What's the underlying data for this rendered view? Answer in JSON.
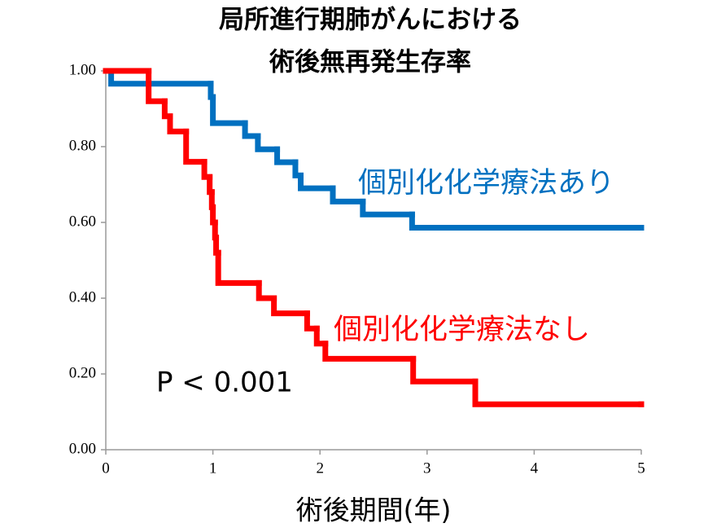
{
  "chart_data": {
    "type": "step",
    "title": [
      "局所進行期肺がんにおける",
      "術後無再発生存率"
    ],
    "xlabel": "術後期間(年)",
    "annotation": "P < 0.001",
    "xlim": [
      0,
      5
    ],
    "xticks": [
      0,
      1,
      2,
      3,
      4,
      5
    ],
    "ylim": [
      0,
      1
    ],
    "yticks": [
      {
        "value": 0,
        "label": "0.00"
      },
      {
        "value": 0.2,
        "label": "0.20"
      },
      {
        "value": 0.4,
        "label": "0.40"
      },
      {
        "value": 0.6,
        "label": "0.60"
      },
      {
        "value": 0.8,
        "label": "0.80"
      },
      {
        "value": 1,
        "label": "1.00"
      }
    ],
    "series": [
      {
        "name": "個別化化学療法あり",
        "color": "#0070c0",
        "x": [
          0,
          0.05,
          0.98,
          1.0,
          1.3,
          1.42,
          1.6,
          1.77,
          1.82,
          2.12,
          2.4,
          2.86,
          5
        ],
        "values": [
          1.0,
          0.966,
          0.931,
          0.862,
          0.828,
          0.793,
          0.759,
          0.724,
          0.69,
          0.655,
          0.621,
          0.586,
          0.586
        ]
      },
      {
        "name": "個別化化学療法なし",
        "color": "#ff0000",
        "x": [
          0,
          0.4,
          0.55,
          0.6,
          0.75,
          0.92,
          0.97,
          0.99,
          1.0,
          1.02,
          1.03,
          1.05,
          1.43,
          1.57,
          1.88,
          1.97,
          2.05,
          2.87,
          3.45,
          5
        ],
        "values": [
          1.0,
          0.92,
          0.88,
          0.84,
          0.76,
          0.72,
          0.68,
          0.64,
          0.6,
          0.56,
          0.52,
          0.44,
          0.4,
          0.36,
          0.32,
          0.28,
          0.24,
          0.18,
          0.12,
          0.12
        ]
      }
    ]
  }
}
